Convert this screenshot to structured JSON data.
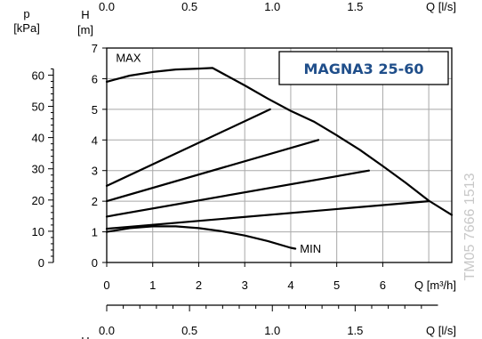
{
  "chart_data": {
    "type": "line",
    "title": "MAGNA3 25-60",
    "code": "TM05 7666 1513",
    "x_axis_bottom": {
      "label": "Q [m³/h]",
      "ticks": [
        "0",
        "1",
        "2",
        "3",
        "4",
        "5",
        "6"
      ],
      "lim": [
        0,
        7.5
      ]
    },
    "x_axis_top": {
      "label": "Q [l/s]",
      "ticks": [
        "0.0",
        "0.5",
        "1.0",
        "1.5"
      ]
    },
    "y_axis_left": {
      "label_top": "p",
      "label_bottom": "[kPa]",
      "ticks": [
        "0",
        "10",
        "20",
        "30",
        "40",
        "50",
        "60"
      ]
    },
    "y_axis_right": {
      "label_top": "H",
      "label_bottom": "[m]",
      "ticks": [
        "0",
        "1",
        "2",
        "3",
        "4",
        "5",
        "6",
        "7"
      ],
      "lim": [
        0,
        7
      ]
    },
    "grid": true,
    "annotations": {
      "max": "MAX",
      "min": "MIN"
    },
    "series": [
      {
        "name": "MAX",
        "points": [
          [
            0,
            5.9
          ],
          [
            0.5,
            6.1
          ],
          [
            1,
            6.22
          ],
          [
            1.5,
            6.3
          ],
          [
            2.0,
            6.33
          ],
          [
            2.3,
            6.35
          ],
          [
            3.0,
            5.78
          ],
          [
            3.5,
            5.35
          ],
          [
            4.0,
            4.95
          ],
          [
            4.5,
            4.6
          ],
          [
            5.0,
            4.15
          ],
          [
            5.5,
            3.68
          ],
          [
            6.0,
            3.15
          ],
          [
            6.5,
            2.6
          ],
          [
            7.0,
            2.02
          ],
          [
            7.5,
            1.55
          ]
        ]
      },
      {
        "points": [
          [
            0,
            2.5
          ],
          [
            3.55,
            5.0
          ]
        ]
      },
      {
        "points": [
          [
            0,
            2.0
          ],
          [
            4.6,
            4.0
          ]
        ]
      },
      {
        "points": [
          [
            0,
            1.5
          ],
          [
            5.7,
            3.0
          ]
        ]
      },
      {
        "points": [
          [
            0,
            1.1
          ],
          [
            7.0,
            2.0
          ]
        ]
      },
      {
        "name": "MIN",
        "points": [
          [
            0,
            1.0
          ],
          [
            0.5,
            1.12
          ],
          [
            1,
            1.18
          ],
          [
            1.5,
            1.18
          ],
          [
            2,
            1.12
          ],
          [
            2.5,
            1.02
          ],
          [
            3,
            0.88
          ],
          [
            3.5,
            0.7
          ],
          [
            4.0,
            0.48
          ],
          [
            4.1,
            0.45
          ]
        ]
      }
    ]
  }
}
